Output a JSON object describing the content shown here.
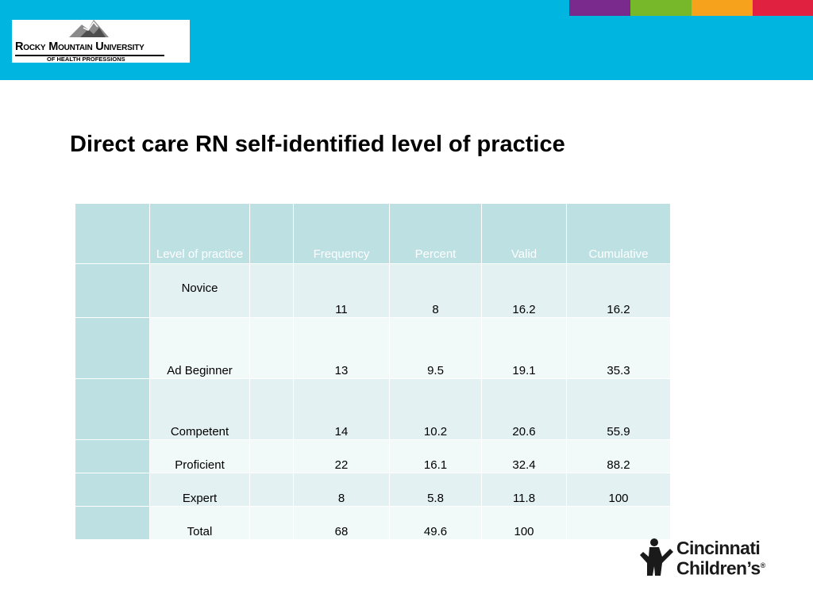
{
  "header": {
    "logo": {
      "line1": "Rocky Mountain University",
      "line2": "OF HEALTH PROFESSIONS"
    },
    "color_strips": [
      "#7a2a8c",
      "#76b82a",
      "#f7a21c",
      "#e0213f"
    ],
    "band_color": "#00b6e0"
  },
  "title": "Direct care RN self-identified level of practice",
  "table": {
    "columns": [
      "",
      "Level of practice",
      "",
      "Frequency",
      "Percent",
      "Valid",
      "Cumulative"
    ],
    "rows": [
      {
        "level": "Novice",
        "frequency": "11",
        "percent": "8",
        "valid": "16.2",
        "cumulative": "16.2"
      },
      {
        "level": "Ad Beginner",
        "frequency": "13",
        "percent": "9.5",
        "valid": "19.1",
        "cumulative": "35.3"
      },
      {
        "level": "Competent",
        "frequency": "14",
        "percent": "10.2",
        "valid": "20.6",
        "cumulative": "55.9"
      },
      {
        "level": "Proficient",
        "frequency": "22",
        "percent": "16.1",
        "valid": "32.4",
        "cumulative": "88.2"
      },
      {
        "level": "Expert",
        "frequency": "8",
        "percent": "5.8",
        "valid": "11.8",
        "cumulative": "100"
      },
      {
        "level": "Total",
        "frequency": "68",
        "percent": "49.6",
        "valid": "100",
        "cumulative": ""
      }
    ]
  },
  "footer_logo": {
    "line1": "Cincinnati",
    "line2": "Children’s",
    "mark": "®"
  }
}
